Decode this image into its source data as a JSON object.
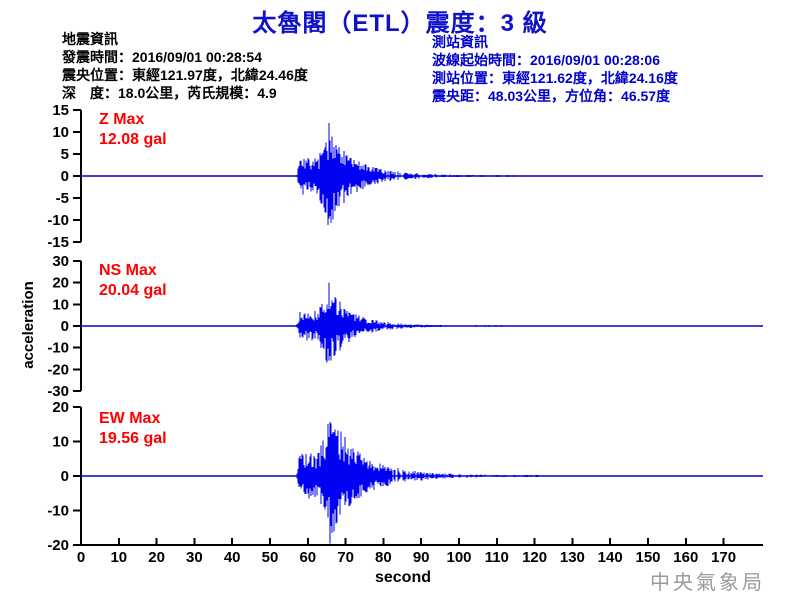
{
  "title": "太魯閣（ETL）震度：3 級",
  "event_info": {
    "heading": "地震資訊",
    "lines": [
      "發震時間：2016/09/01 00:28:54",
      "震央位置：東經121.97度，北緯24.46度",
      "深　度：18.0公里，芮氏規模：4.9"
    ]
  },
  "station_info": {
    "heading": "測站資訊",
    "lines": [
      "波線起始時間：2016/09/01 00:28:06",
      "測站位置：東經121.62度，北緯24.16度",
      "震央距：48.03公里，方位角：46.57度"
    ]
  },
  "watermark": "中央氣象局",
  "colors": {
    "title_blue": "#1111cc",
    "info_blue": "#0000cc",
    "waveform_blue": "#0202f2",
    "baseline_blue": "#0000cc",
    "max_red": "#ff0000",
    "axis_black": "#000000",
    "watermark_gray": "#9b9b9b"
  },
  "chart_data": {
    "type": "line",
    "title": "太魯閣（ETL）震度：3 級",
    "xlabel": "second",
    "ylabel": "acceleration",
    "x_ticks": [
      0,
      10,
      20,
      30,
      40,
      50,
      60,
      70,
      80,
      90,
      100,
      110,
      120,
      130,
      140,
      150,
      160,
      170
    ],
    "x_range": [
      0,
      180
    ],
    "grid": false,
    "panels": [
      {
        "component": "Z",
        "max_label_line1": "Z Max",
        "max_label_line2": "12.08 gal",
        "max_gal": 12.08,
        "max_sign": 1,
        "unit": "gal",
        "ylim": 15,
        "y_ticks": [
          -15,
          -10,
          -5,
          0,
          5,
          10,
          15
        ],
        "signal": {
          "start_sec": 57,
          "burst_sec": 63,
          "peak_sec": 65.5,
          "tau1": 5,
          "tau2": 15,
          "end_sec": 116,
          "seed": 7
        }
      },
      {
        "component": "NS",
        "max_label_line1": "NS Max",
        "max_label_line2": "20.04 gal",
        "max_gal": 20.04,
        "max_sign": 1,
        "unit": "gal",
        "ylim": 30,
        "y_ticks": [
          -30,
          -20,
          -10,
          0,
          10,
          20,
          30
        ],
        "signal": {
          "start_sec": 57,
          "burst_sec": 63,
          "peak_sec": 65.5,
          "tau1": 4.5,
          "tau2": 13,
          "end_sec": 112,
          "seed": 13
        }
      },
      {
        "component": "EW",
        "max_label_line1": "EW Max",
        "max_label_line2": "19.56 gal",
        "max_gal": 19.56,
        "max_sign": -1,
        "unit": "gal",
        "ylim": 20,
        "y_ticks": [
          -20,
          -10,
          0,
          10,
          20
        ],
        "signal": {
          "start_sec": 57,
          "burst_sec": 63,
          "peak_sec": 66,
          "tau1": 6,
          "tau2": 17,
          "end_sec": 124,
          "seed": 21
        }
      }
    ]
  }
}
